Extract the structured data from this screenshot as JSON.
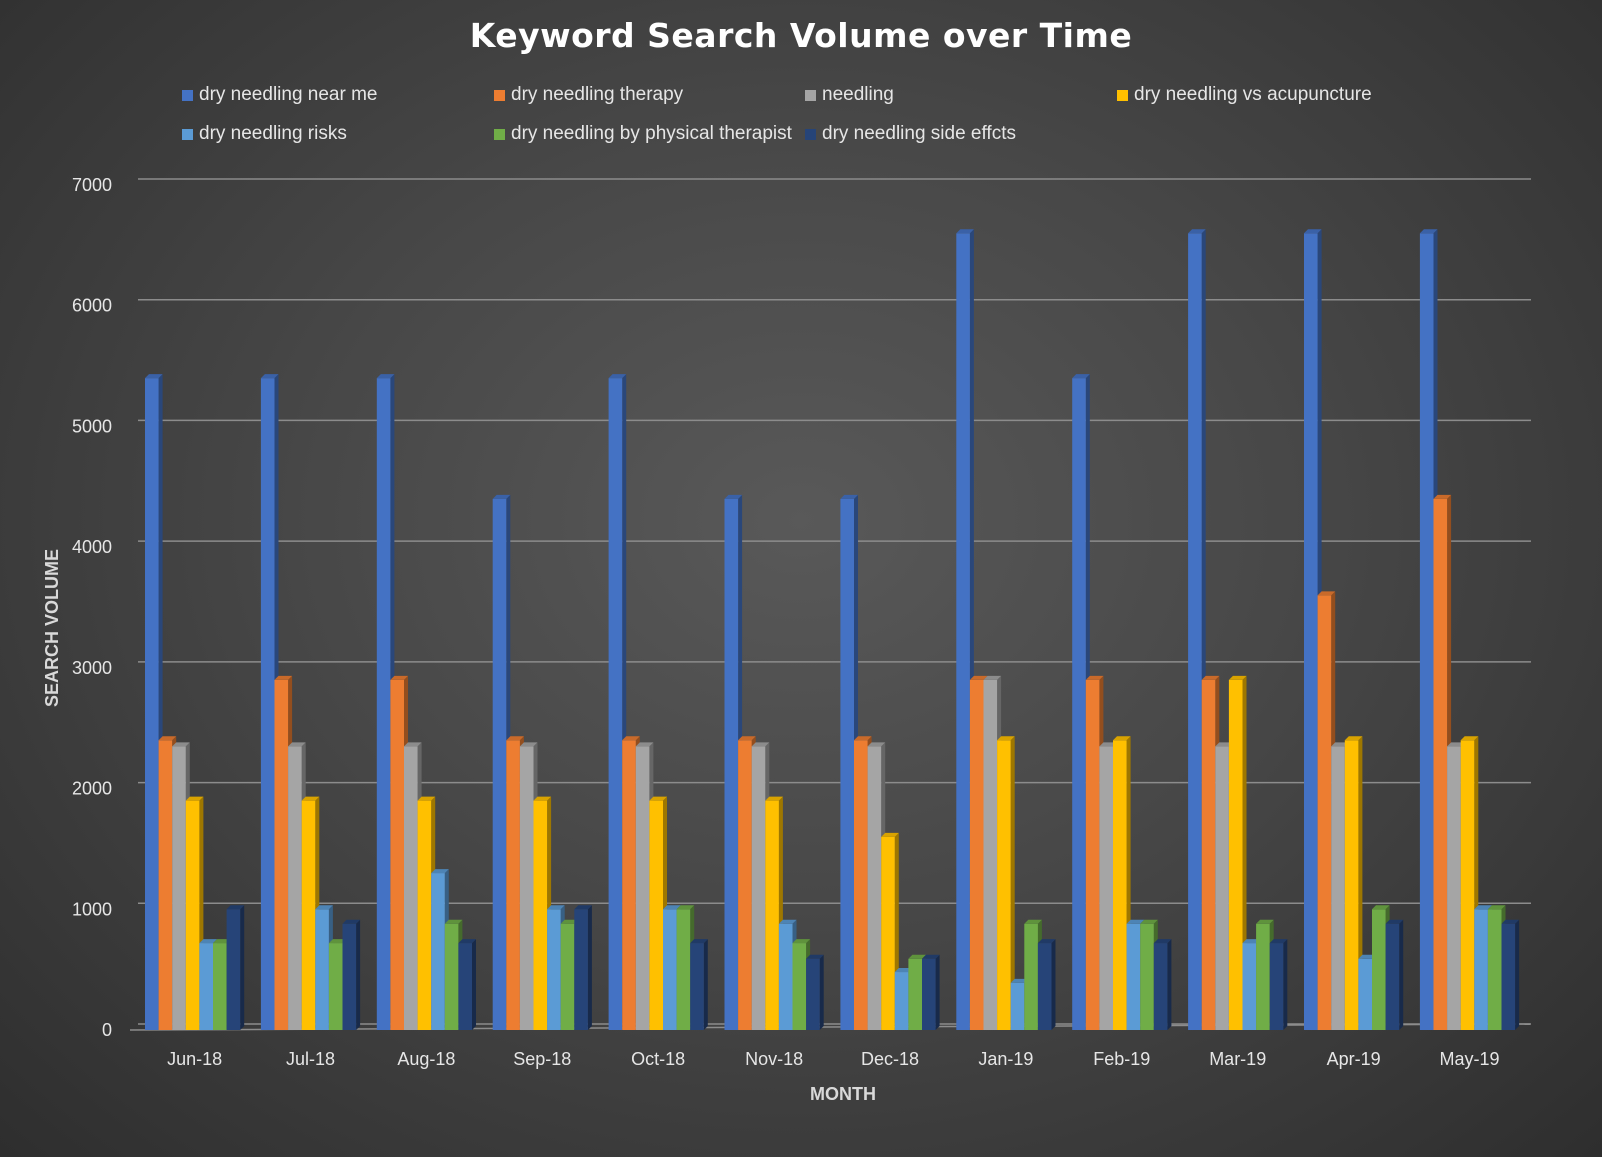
{
  "chart_data": {
    "type": "bar",
    "title": "Keyword Search Volume over Time",
    "xlabel": "MONTH",
    "ylabel": "SEARCH VOLUME",
    "ylim": [
      0,
      7000
    ],
    "yticks": [
      "0",
      "1000",
      "2000",
      "3000",
      "4000",
      "5000",
      "6000",
      "7000"
    ],
    "grid": true,
    "legend_position": "top",
    "categories": [
      "Jun-18",
      "Jul-18",
      "Aug-18",
      "Sep-18",
      "Oct-18",
      "Nov-18",
      "Dec-18",
      "Jan-19",
      "Feb-19",
      "Mar-19",
      "Apr-19",
      "May-19"
    ],
    "series": [
      {
        "name": "dry needling near me",
        "color": "#4472c4",
        "values": [
          5400,
          5400,
          5400,
          4400,
          5400,
          4400,
          4400,
          6600,
          5400,
          6600,
          6600,
          6600
        ]
      },
      {
        "name": "dry needling therapy",
        "color": "#ed7d31",
        "values": [
          2400,
          2900,
          2900,
          2400,
          2400,
          2400,
          2400,
          2900,
          2900,
          2900,
          3600,
          4400
        ]
      },
      {
        "name": "needling",
        "color": "#a5a5a5",
        "values": [
          2350,
          2350,
          2350,
          2350,
          2350,
          2350,
          2350,
          2900,
          2350,
          2350,
          2350,
          2350
        ]
      },
      {
        "name": "dry needling vs acupuncture",
        "color": "#ffc000",
        "values": [
          1900,
          1900,
          1900,
          1900,
          1900,
          1900,
          1600,
          2400,
          2400,
          2900,
          2400,
          2400
        ]
      },
      {
        "name": "dry needling risks",
        "color": "#5b9bd5",
        "values": [
          720,
          1000,
          1300,
          1000,
          1000,
          880,
          480,
          390,
          880,
          720,
          590,
          1000
        ]
      },
      {
        "name": "dry needling by physical therapist",
        "color": "#70ad47",
        "values": [
          720,
          720,
          880,
          880,
          1000,
          720,
          590,
          880,
          880,
          880,
          1000,
          1000
        ]
      },
      {
        "name": "dry needling side effcts",
        "color": "#264478",
        "values": [
          1000,
          880,
          720,
          1000,
          720,
          590,
          590,
          720,
          720,
          720,
          880,
          880
        ]
      }
    ]
  }
}
